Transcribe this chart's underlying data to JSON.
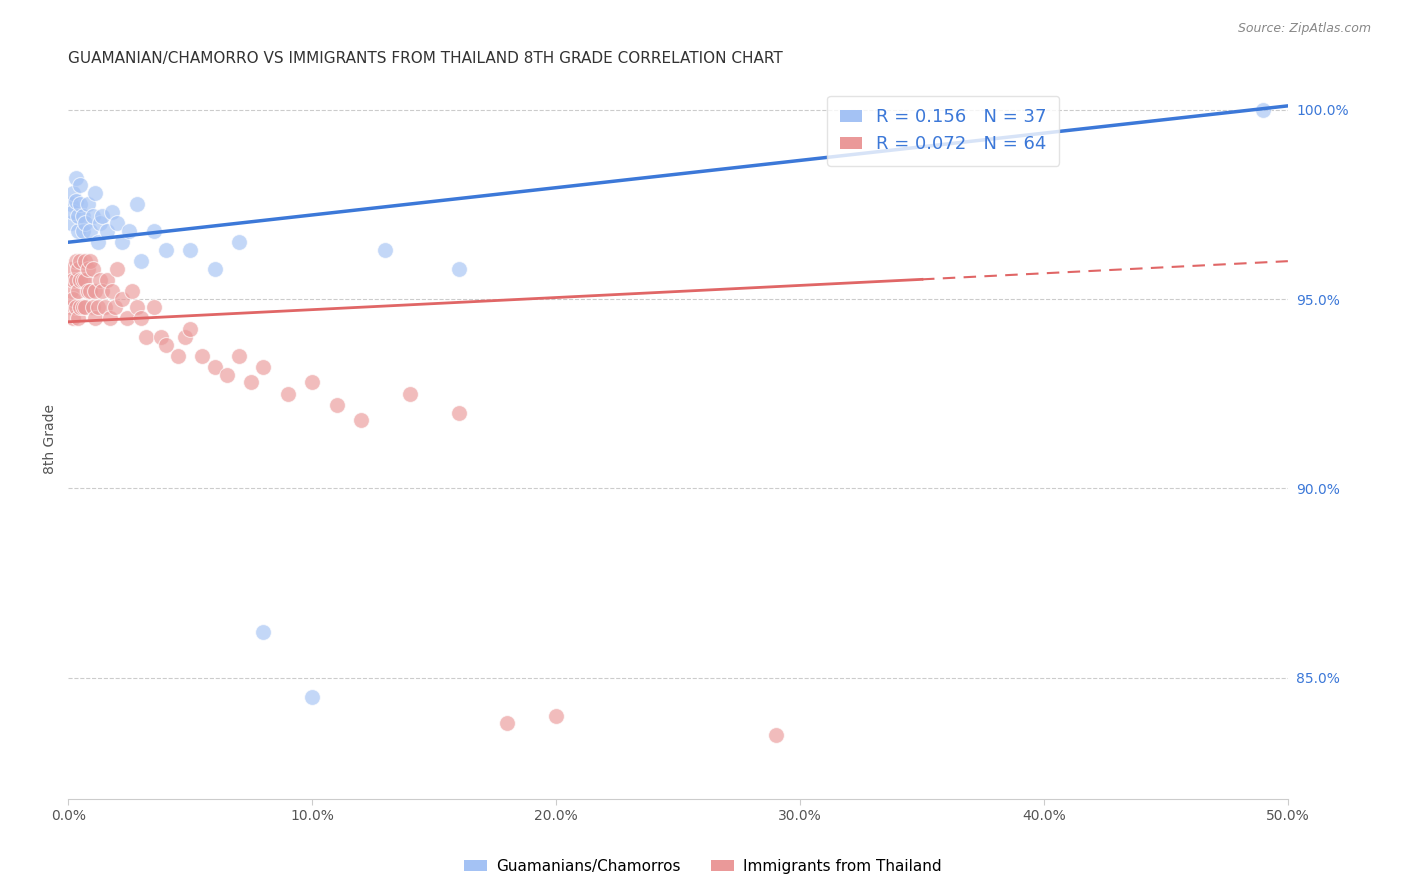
{
  "title": "GUAMANIAN/CHAMORRO VS IMMIGRANTS FROM THAILAND 8TH GRADE CORRELATION CHART",
  "source": "Source: ZipAtlas.com",
  "ylabel_left": "8th Grade",
  "xlim": [
    0.0,
    0.5
  ],
  "ylim": [
    0.818,
    1.008
  ],
  "xticks": [
    0.0,
    0.1,
    0.2,
    0.3,
    0.4,
    0.5
  ],
  "xtick_labels": [
    "0.0%",
    "10.0%",
    "20.0%",
    "30.0%",
    "40.0%",
    "50.0%"
  ],
  "yticks_right": [
    0.85,
    0.9,
    0.95,
    1.0
  ],
  "ytick_labels_right": [
    "85.0%",
    "90.0%",
    "95.0%",
    "100.0%"
  ],
  "blue_R": 0.156,
  "blue_N": 37,
  "pink_R": 0.072,
  "pink_N": 64,
  "blue_color": "#a4c2f4",
  "pink_color": "#ea9999",
  "blue_line_color": "#3c78d8",
  "pink_line_color": "#e06666",
  "legend_label_blue": "Guamanians/Chamorros",
  "legend_label_pink": "Immigrants from Thailand",
  "blue_scatter_x": [
    0.001,
    0.001,
    0.002,
    0.002,
    0.003,
    0.003,
    0.004,
    0.004,
    0.005,
    0.005,
    0.006,
    0.006,
    0.007,
    0.008,
    0.009,
    0.01,
    0.011,
    0.012,
    0.013,
    0.014,
    0.016,
    0.018,
    0.02,
    0.022,
    0.025,
    0.028,
    0.03,
    0.035,
    0.04,
    0.05,
    0.06,
    0.07,
    0.08,
    0.1,
    0.13,
    0.16,
    0.49
  ],
  "blue_scatter_y": [
    0.975,
    0.97,
    0.978,
    0.973,
    0.982,
    0.976,
    0.968,
    0.972,
    0.98,
    0.975,
    0.972,
    0.968,
    0.97,
    0.975,
    0.968,
    0.972,
    0.978,
    0.965,
    0.97,
    0.972,
    0.968,
    0.973,
    0.97,
    0.965,
    0.968,
    0.975,
    0.96,
    0.968,
    0.963,
    0.963,
    0.958,
    0.965,
    0.862,
    0.845,
    0.963,
    0.958,
    1.0
  ],
  "pink_scatter_x": [
    0.001,
    0.001,
    0.001,
    0.002,
    0.002,
    0.002,
    0.003,
    0.003,
    0.003,
    0.004,
    0.004,
    0.004,
    0.005,
    0.005,
    0.005,
    0.006,
    0.006,
    0.007,
    0.007,
    0.007,
    0.008,
    0.008,
    0.009,
    0.009,
    0.01,
    0.01,
    0.011,
    0.011,
    0.012,
    0.013,
    0.014,
    0.015,
    0.016,
    0.017,
    0.018,
    0.019,
    0.02,
    0.022,
    0.024,
    0.026,
    0.028,
    0.03,
    0.032,
    0.035,
    0.038,
    0.04,
    0.045,
    0.048,
    0.05,
    0.055,
    0.06,
    0.065,
    0.07,
    0.075,
    0.08,
    0.09,
    0.1,
    0.11,
    0.12,
    0.14,
    0.16,
    0.18,
    0.2,
    0.29
  ],
  "pink_scatter_y": [
    0.958,
    0.952,
    0.948,
    0.955,
    0.95,
    0.945,
    0.96,
    0.955,
    0.948,
    0.958,
    0.952,
    0.945,
    0.96,
    0.955,
    0.948,
    0.955,
    0.948,
    0.96,
    0.955,
    0.948,
    0.958,
    0.952,
    0.96,
    0.952,
    0.958,
    0.948,
    0.952,
    0.945,
    0.948,
    0.955,
    0.952,
    0.948,
    0.955,
    0.945,
    0.952,
    0.948,
    0.958,
    0.95,
    0.945,
    0.952,
    0.948,
    0.945,
    0.94,
    0.948,
    0.94,
    0.938,
    0.935,
    0.94,
    0.942,
    0.935,
    0.932,
    0.93,
    0.935,
    0.928,
    0.932,
    0.925,
    0.928,
    0.922,
    0.918,
    0.925,
    0.92,
    0.838,
    0.84,
    0.835
  ],
  "background_color": "#ffffff",
  "grid_color": "#cccccc",
  "title_fontsize": 11,
  "axis_label_fontsize": 10,
  "tick_fontsize": 10,
  "blue_line_intercept": 0.965,
  "blue_line_slope": 0.072,
  "pink_line_intercept": 0.944,
  "pink_line_slope": 0.032
}
